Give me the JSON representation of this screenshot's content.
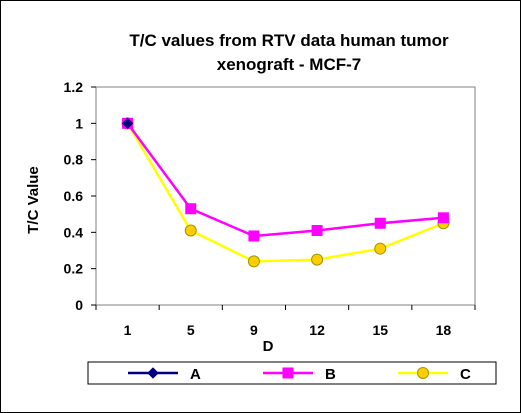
{
  "chart_data": {
    "type": "line",
    "title_line1": "T/C values from RTV data human tumor",
    "title_line2": "xenograft - MCF-7",
    "xlabel": "D",
    "ylabel": "T/C Value",
    "categories": [
      "1",
      "5",
      "9",
      "12",
      "15",
      "18"
    ],
    "ylim": [
      0,
      1.2
    ],
    "yticks": [
      "0",
      "0.2",
      "0.4",
      "0.6",
      "0.8",
      "1",
      "1.2"
    ],
    "grid": false,
    "legend_position": "bottom",
    "series": [
      {
        "name": "A",
        "color": "#000080",
        "marker": "diamond",
        "values": [
          1.0,
          null,
          null,
          null,
          null,
          null
        ]
      },
      {
        "name": "B",
        "color": "#ff00ff",
        "marker": "square",
        "values": [
          1.0,
          0.53,
          0.38,
          0.41,
          0.45,
          0.48
        ]
      },
      {
        "name": "C",
        "color": "#ffff00",
        "marker": "circle",
        "marker_fill": "#ffcc00",
        "marker_stroke": "#999900",
        "values": [
          1.0,
          0.41,
          0.24,
          0.25,
          0.31,
          0.45
        ]
      }
    ]
  }
}
